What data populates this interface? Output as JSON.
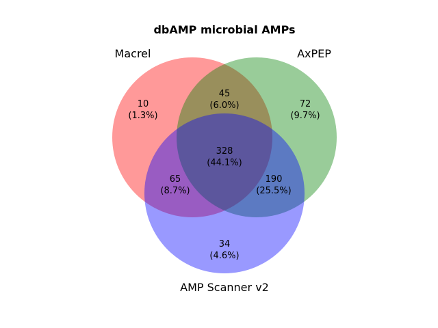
{
  "title": "dbAMP microbial AMPs",
  "sets": [
    {
      "key": "A",
      "name": "Macrel",
      "color": "#ff0000"
    },
    {
      "key": "B",
      "name": "AxPEP",
      "color": "#008000"
    },
    {
      "key": "C",
      "name": "AMP Scanner v2",
      "color": "#0000ff"
    }
  ],
  "circle_fill_opacity": 0.4,
  "regions": {
    "A_only": {
      "count": "10",
      "percent": "(1.3%)"
    },
    "B_only": {
      "count": "72",
      "percent": "(9.7%)"
    },
    "C_only": {
      "count": "34",
      "percent": "(4.6%)"
    },
    "AB_only": {
      "count": "45",
      "percent": "(6.0%)"
    },
    "AC_only": {
      "count": "65",
      "percent": "(8.7%)"
    },
    "BC_only": {
      "count": "190",
      "percent": "(25.5%)"
    },
    "ABC": {
      "count": "328",
      "percent": "(44.1%)"
    }
  }
}
